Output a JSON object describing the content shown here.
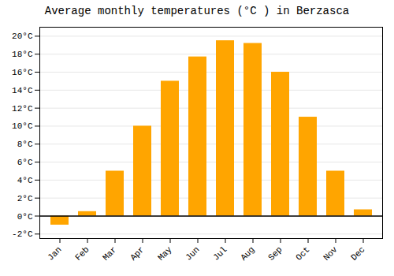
{
  "chart_data": {
    "type": "bar",
    "title": "Average monthly temperatures (°C ) in Berzasca",
    "categories": [
      "Jan",
      "Feb",
      "Mar",
      "Apr",
      "May",
      "Jun",
      "Jul",
      "Aug",
      "Sep",
      "Oct",
      "Nov",
      "Dec"
    ],
    "values": [
      -1.0,
      0.5,
      5.0,
      10.0,
      15.0,
      17.7,
      19.5,
      19.2,
      16.0,
      11.0,
      5.0,
      0.7
    ],
    "color": "#FFA500",
    "ylim": [
      -2.5,
      21.0
    ],
    "yticks": [
      {
        "value": -2,
        "label": "-2°C"
      },
      {
        "value": 0,
        "label": "0°C"
      },
      {
        "value": 2,
        "label": "2°C"
      },
      {
        "value": 4,
        "label": "4°C"
      },
      {
        "value": 6,
        "label": "6°C"
      },
      {
        "value": 8,
        "label": "8°C"
      },
      {
        "value": 10,
        "label": "10°C"
      },
      {
        "value": 12,
        "label": "12°C"
      },
      {
        "value": 14,
        "label": "14°C"
      },
      {
        "value": 16,
        "label": "16°C"
      },
      {
        "value": 18,
        "label": "18°C"
      },
      {
        "value": 20,
        "label": "20°C"
      }
    ],
    "grid": true
  }
}
